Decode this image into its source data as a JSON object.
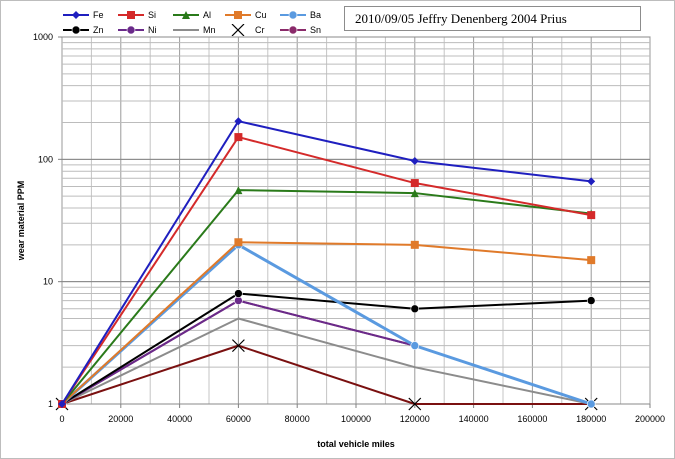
{
  "chart_data": {
    "type": "line",
    "title": "2010/09/05 Jeffry Denenberg 2004 Prius",
    "xlabel": "total vehicle miles",
    "ylabel": "wear material PPM",
    "xlim": [
      0,
      200000
    ],
    "ylim": [
      1,
      1000
    ],
    "yscale": "log",
    "grid": true,
    "legend_position": "top-left",
    "x_ticks": [
      "0",
      "20000",
      "40000",
      "60000",
      "80000",
      "100000",
      "120000",
      "140000",
      "160000",
      "180000",
      "200000"
    ],
    "y_ticks": [
      "1",
      "10",
      "100",
      "1000"
    ],
    "x": [
      0,
      60000,
      120000,
      180000
    ],
    "series": [
      {
        "name": "Fe",
        "color": "#1f1fbf",
        "marker": "diamond",
        "values": [
          1,
          205,
          97,
          66
        ]
      },
      {
        "name": "Si",
        "color": "#d42a2a",
        "marker": "square",
        "values": [
          1,
          152,
          64,
          35
        ]
      },
      {
        "name": "Al",
        "color": "#2a7a1a",
        "marker": "triangle",
        "values": [
          1,
          56,
          53,
          36
        ]
      },
      {
        "name": "Cu",
        "color": "#e07a2a",
        "marker": "square",
        "values": [
          1,
          21,
          20,
          15
        ]
      },
      {
        "name": "Ba",
        "color": "#5a9ae0",
        "marker": "circle",
        "values": [
          1,
          20,
          3,
          1
        ]
      },
      {
        "name": "Zn",
        "color": "#000000",
        "marker": "circle",
        "values": [
          1,
          8,
          6,
          7
        ]
      },
      {
        "name": "Ni",
        "color": "#6a2a8a",
        "marker": "circle",
        "values": [
          1,
          7,
          3,
          1
        ]
      },
      {
        "name": "Mn",
        "color": "#8c8c8c",
        "marker": "none",
        "values": [
          1,
          5,
          2,
          1
        ]
      },
      {
        "name": "Cr",
        "color": "#7a1010",
        "marker": "x",
        "values": [
          1,
          3,
          1,
          1
        ]
      },
      {
        "name": "Sn",
        "color": "#8a2a6a",
        "marker": "circle",
        "values": [
          1,
          7,
          3,
          1
        ]
      }
    ]
  }
}
